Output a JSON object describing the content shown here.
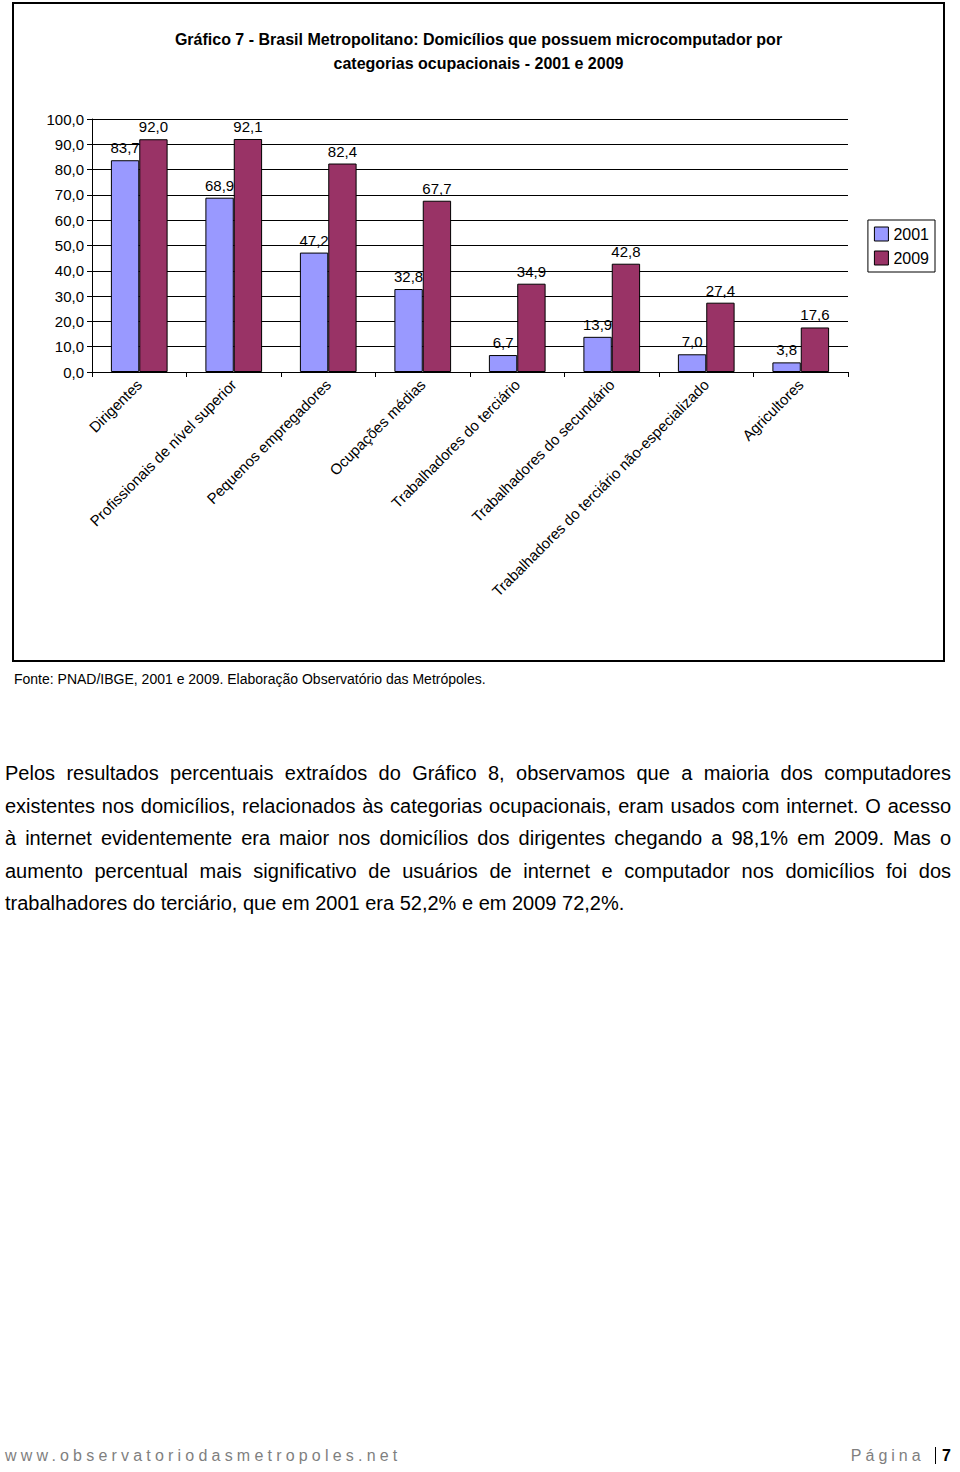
{
  "chart_data": {
    "type": "bar",
    "title": "Gráfico 7 - Brasil Metropolitano: Domicílios que possuem microcomputador por\ncategorias ocupacionais - 2001 e 2009",
    "categories": [
      "Dirigentes",
      "Profissionais de nível superior",
      "Pequenos empregadores",
      "Ocupações médias",
      "Trabalhadores do terciário",
      "Trabalhadores do secundário",
      "Trabalhadores do terciário não-especializado",
      "Agricultores"
    ],
    "series": [
      {
        "name": "2001",
        "color": "#9999ff",
        "values": [
          83.7,
          68.9,
          47.2,
          32.8,
          6.7,
          13.9,
          7.0,
          3.8
        ],
        "value_labels": [
          "83,7",
          "68,9",
          "47,2",
          "32,8",
          "6,7",
          "13,9",
          "7,0",
          "3,8"
        ]
      },
      {
        "name": "2009",
        "color": "#993366",
        "values": [
          92.0,
          92.1,
          82.4,
          67.7,
          34.9,
          42.8,
          27.4,
          17.6
        ],
        "value_labels": [
          "92,0",
          "92,1",
          "82,4",
          "67,7",
          "34,9",
          "42,8",
          "27,4",
          "17,6"
        ]
      }
    ],
    "ylim": [
      0,
      100
    ],
    "yticks": [
      {
        "value": 0,
        "label": "0,0"
      },
      {
        "value": 10,
        "label": "10,0"
      },
      {
        "value": 20,
        "label": "20,0"
      },
      {
        "value": 30,
        "label": "30,0"
      },
      {
        "value": 40,
        "label": "40,0"
      },
      {
        "value": 50,
        "label": "50,0"
      },
      {
        "value": 60,
        "label": "60,0"
      },
      {
        "value": 70,
        "label": "70,0"
      },
      {
        "value": 80,
        "label": "80,0"
      },
      {
        "value": 90,
        "label": "90,0"
      },
      {
        "value": 100,
        "label": "100,0"
      }
    ],
    "grid": true,
    "legend": "right",
    "data_labels": true
  },
  "source": "Fonte: PNAD/IBGE, 2001 e 2009. Elaboração Observatório das Metrópoles.",
  "paragraph": "Pelos resultados percentuais extraídos do Gráfico 8, observamos que a maioria dos computadores existentes nos domicílios, relacionados às categorias ocupacionais, eram usados com internet. O acesso à internet evidentemente era maior nos domicílios dos dirigentes chegando a 98,1% em 2009. Mas o aumento percentual mais significativo de usuários de internet e computador nos domicílios foi dos trabalhadores do terciário, que em 2001 era 52,2% e em 2009 72,2%.",
  "footer": {
    "website": "www.observatoriodasmetropoles.net",
    "page_label": "Página",
    "page": 7
  }
}
